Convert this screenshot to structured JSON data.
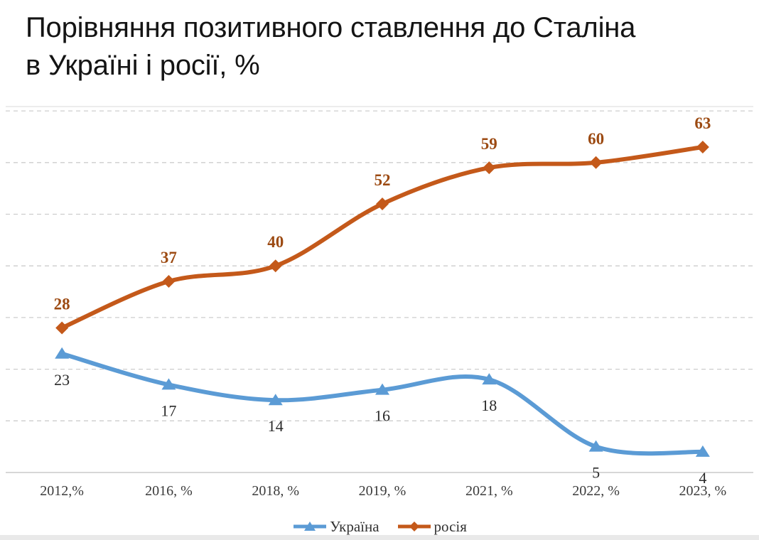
{
  "page": {
    "title_line1": "Порівняння позитивного ставлення до Сталіна",
    "title_line2": "в Україні і росії, %"
  },
  "chart_data": {
    "type": "line",
    "smooth": true,
    "grid": "dashed-horizontal",
    "legend_position": "bottom",
    "categories": [
      "2012,%",
      "2016, %",
      "2018, %",
      "2019, %",
      "2021, %",
      "2022, %",
      "2023, %"
    ],
    "series": [
      {
        "key": "ukraine",
        "name": "Україна",
        "values": [
          23,
          17,
          14,
          16,
          18,
          5,
          4
        ],
        "color": "#5b9bd5",
        "marker": "triangle",
        "label_color": "#2a2a2a",
        "label_weight": "normal",
        "label_side": "below"
      },
      {
        "key": "russia",
        "name": "росія",
        "values": [
          28,
          37,
          40,
          52,
          59,
          60,
          63
        ],
        "color": "#c4591a",
        "marker": "diamond",
        "label_color": "#9c4a12",
        "label_weight": "bold",
        "label_side": "above"
      }
    ],
    "ylim": [
      0,
      75
    ],
    "gridline_values": [
      10,
      20,
      30,
      40,
      50,
      60,
      70
    ],
    "colors": {
      "gridline": "#cdcdcd",
      "axis_line": "#bfbfbf",
      "chart_border": "#e0e0e0",
      "axis_label": "#3b3b3b",
      "title": "#141414"
    }
  }
}
